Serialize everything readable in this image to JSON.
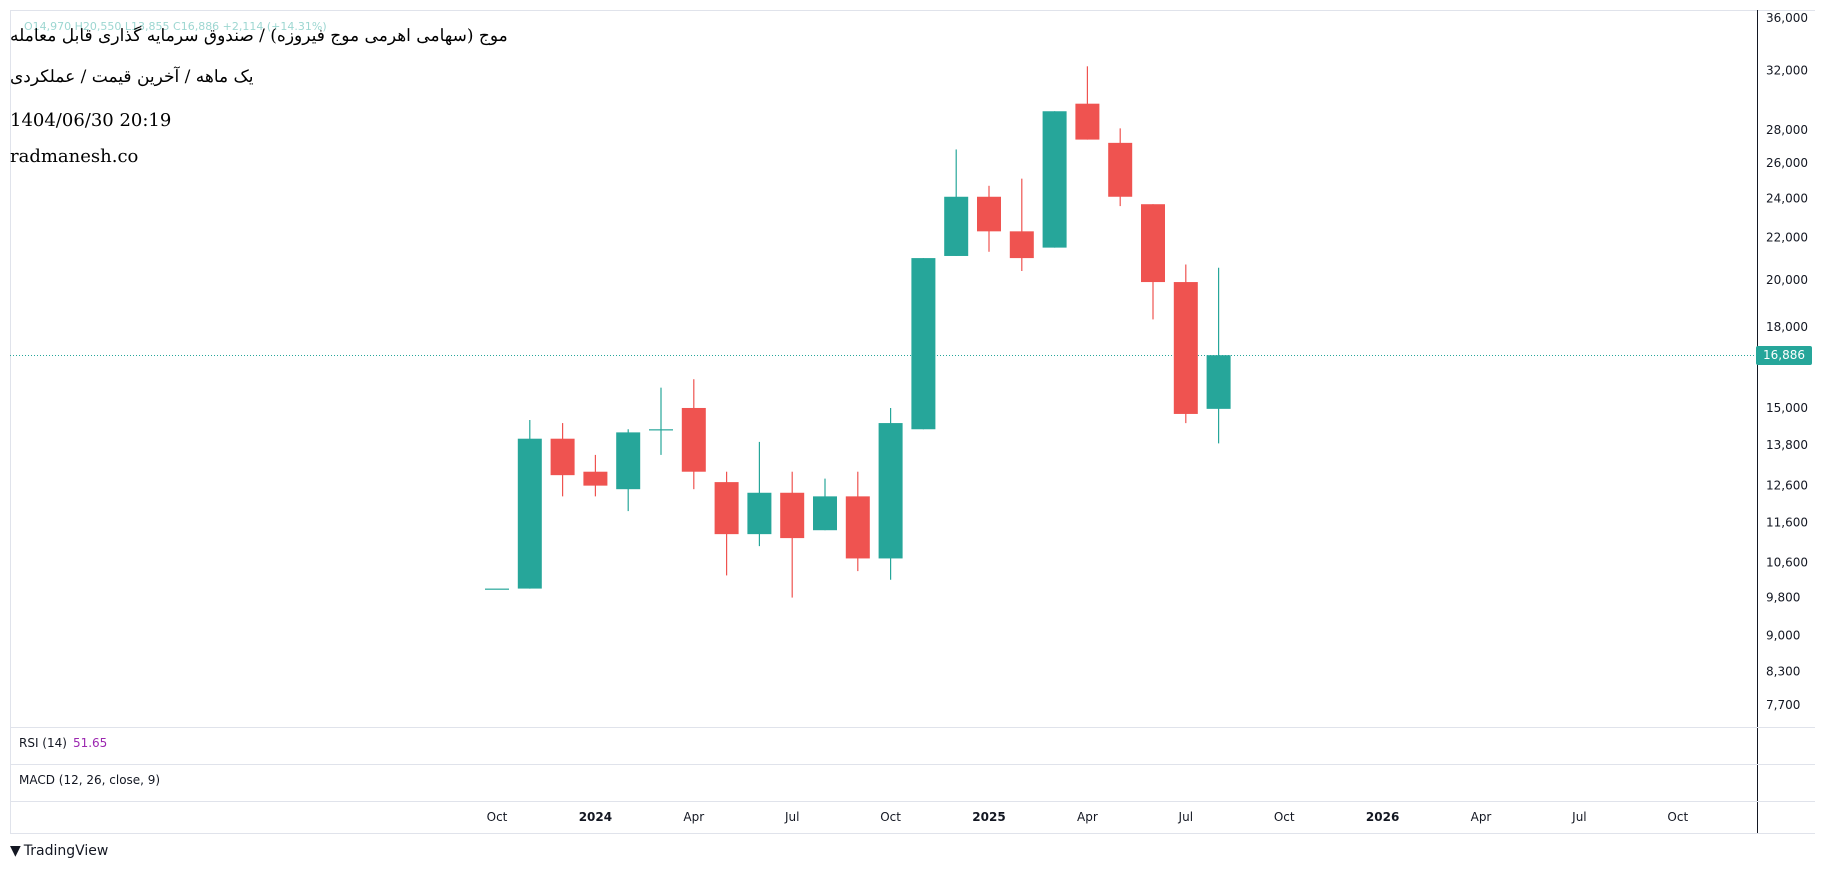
{
  "header": {
    "title": "موج (سهامی اهرمی موج فیروزه) / صندوق سرمایه گذاری قابل معامله",
    "subtitle": "یک ماهه / آخرین قیمت / عملکردی",
    "datetime": "1404/06/30 20:19",
    "website": "radmanesh.co",
    "ohlc_faded": "O14,970 H20,550 L13,855 C16,886 +2,114 (+14.31%)"
  },
  "indicators": {
    "rsi_label": "RSI (14)",
    "rsi_value": "51.65",
    "macd_label": "MACD (12, 26, close, 9)"
  },
  "last_price_label": "16,886",
  "brand": {
    "name": "TradingView",
    "logo_icon": "tradingview-logo-icon"
  },
  "colors": {
    "up": "#26a69a",
    "down": "#ef5350",
    "grid": "#e0e3eb",
    "text": "#131722",
    "rsi": "#9c27b0"
  },
  "chart_data": {
    "type": "candlestick",
    "y_scale": "log",
    "ylim": [
      7200,
      36000
    ],
    "y_ticks": [
      {
        "value": 36000,
        "label": "36,000"
      },
      {
        "value": 32000,
        "label": "32,000"
      },
      {
        "value": 28000,
        "label": "28,000"
      },
      {
        "value": 26000,
        "label": "26,000"
      },
      {
        "value": 24000,
        "label": "24,000"
      },
      {
        "value": 22000,
        "label": "22,000"
      },
      {
        "value": 20000,
        "label": "20,000"
      },
      {
        "value": 18000,
        "label": "18,000"
      },
      {
        "value": 15000,
        "label": "15,000"
      },
      {
        "value": 13800,
        "label": "13,800"
      },
      {
        "value": 12600,
        "label": "12,600"
      },
      {
        "value": 11600,
        "label": "11,600"
      },
      {
        "value": 10600,
        "label": "10,600"
      },
      {
        "value": 9800,
        "label": "9,800"
      },
      {
        "value": 9000,
        "label": "9,000"
      },
      {
        "value": 8300,
        "label": "8,300"
      },
      {
        "value": 7700,
        "label": "7,700"
      }
    ],
    "x_ticks": [
      {
        "date": "2023-10",
        "label": "Oct",
        "bold": false
      },
      {
        "date": "2024-01",
        "label": "2024",
        "bold": true
      },
      {
        "date": "2024-04",
        "label": "Apr",
        "bold": false
      },
      {
        "date": "2024-07",
        "label": "Jul",
        "bold": false
      },
      {
        "date": "2024-10",
        "label": "Oct",
        "bold": false
      },
      {
        "date": "2025-01",
        "label": "2025",
        "bold": true
      },
      {
        "date": "2025-04",
        "label": "Apr",
        "bold": false
      },
      {
        "date": "2025-07",
        "label": "Jul",
        "bold": false
      },
      {
        "date": "2025-10",
        "label": "Oct",
        "bold": false
      },
      {
        "date": "2026-01",
        "label": "2026",
        "bold": true
      },
      {
        "date": "2026-04",
        "label": "Apr",
        "bold": false
      },
      {
        "date": "2026-07",
        "label": "Jul",
        "bold": false
      },
      {
        "date": "2026-10",
        "label": "Oct",
        "bold": false
      }
    ],
    "last_price": 16886,
    "candles": [
      {
        "date": "2023-10",
        "open": 10000,
        "high": 10000,
        "low": 10000,
        "close": 10000
      },
      {
        "date": "2023-11",
        "open": 10000,
        "high": 14600,
        "low": 10000,
        "close": 14000
      },
      {
        "date": "2023-12",
        "open": 14000,
        "high": 14500,
        "low": 12300,
        "close": 12900
      },
      {
        "date": "2024-01",
        "open": 13000,
        "high": 13500,
        "low": 12300,
        "close": 12600
      },
      {
        "date": "2024-02",
        "open": 12500,
        "high": 14300,
        "low": 11900,
        "close": 14200
      },
      {
        "date": "2024-03",
        "open": 14300,
        "high": 15700,
        "low": 13500,
        "close": 14300
      },
      {
        "date": "2024-04",
        "open": 15000,
        "high": 16000,
        "low": 12500,
        "close": 13000
      },
      {
        "date": "2024-05",
        "open": 12700,
        "high": 13000,
        "low": 10300,
        "close": 11300
      },
      {
        "date": "2024-06",
        "open": 11300,
        "high": 13900,
        "low": 11000,
        "close": 12400
      },
      {
        "date": "2024-07",
        "open": 12400,
        "high": 13000,
        "low": 9800,
        "close": 11200
      },
      {
        "date": "2024-08",
        "open": 11400,
        "high": 12800,
        "low": 11400,
        "close": 12300
      },
      {
        "date": "2024-09",
        "open": 12300,
        "high": 13000,
        "low": 10400,
        "close": 10700
      },
      {
        "date": "2024-10",
        "open": 10700,
        "high": 15000,
        "low": 10200,
        "close": 14500
      },
      {
        "date": "2024-11",
        "open": 14300,
        "high": 21000,
        "low": 14300,
        "close": 21000
      },
      {
        "date": "2024-12",
        "open": 21100,
        "high": 26800,
        "low": 21100,
        "close": 24100
      },
      {
        "date": "2025-01",
        "open": 24100,
        "high": 24700,
        "low": 21300,
        "close": 22300
      },
      {
        "date": "2025-02",
        "open": 22300,
        "high": 25100,
        "low": 20400,
        "close": 21000
      },
      {
        "date": "2025-03",
        "open": 21500,
        "high": 29200,
        "low": 21500,
        "close": 29200
      },
      {
        "date": "2025-04",
        "open": 29700,
        "high": 32300,
        "low": 27400,
        "close": 27400
      },
      {
        "date": "2025-05",
        "open": 27200,
        "high": 28100,
        "low": 23600,
        "close": 24100
      },
      {
        "date": "2025-06",
        "open": 23700,
        "high": 23700,
        "low": 18300,
        "close": 19900
      },
      {
        "date": "2025-07",
        "open": 19900,
        "high": 20700,
        "low": 14500,
        "close": 14800
      },
      {
        "date": "2025-08",
        "open": 14970,
        "high": 20550,
        "low": 13855,
        "close": 16886
      }
    ]
  }
}
